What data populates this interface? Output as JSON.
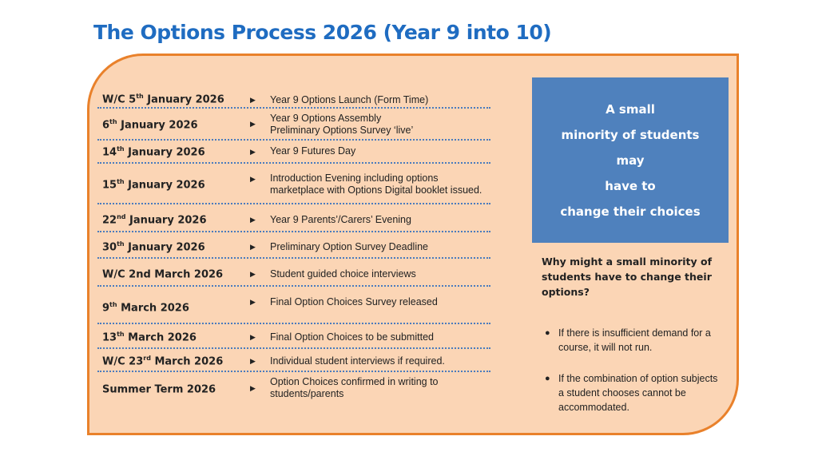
{
  "title": "The Options Process 2026 (Year 9 into 10)",
  "timeline": [
    {
      "date_pre": "W/C 5",
      "sup": "th",
      "date_post": " January 2026",
      "desc1": "Year 9 Options Launch (Form Time)",
      "desc2": ""
    },
    {
      "date_pre": "6",
      "sup": "th",
      "date_post": " January 2026",
      "desc1": "Year 9 Options Assembly",
      "desc2": "Preliminary Options Survey ‘live’"
    },
    {
      "date_pre": "14",
      "sup": "th",
      "date_post": " January 2026",
      "desc1": "Year 9 Futures Day",
      "desc2": ""
    },
    {
      "date_pre": "15",
      "sup": "th",
      "date_post": " January 2026",
      "desc1": "Introduction Evening including options",
      "desc2": "marketplace with Options Digital booklet issued."
    },
    {
      "date_pre": "22",
      "sup": "nd",
      "date_post": " January 2026",
      "desc1": "Year 9 Parents’/Carers’ Evening",
      "desc2": ""
    },
    {
      "date_pre": "30",
      "sup": "th",
      "date_post": " January 2026",
      "desc1": "Preliminary Option Survey Deadline",
      "desc2": ""
    },
    {
      "date_pre": "W/C 2nd March 2026",
      "sup": "",
      "date_post": "",
      "desc1": "Student guided choice interviews",
      "desc2": ""
    },
    {
      "date_pre": "9",
      "sup": "th",
      "date_post": " March 2026",
      "desc1": "Final Option Choices Survey released",
      "desc2": ""
    },
    {
      "date_pre": "13",
      "sup": "th",
      "date_post": " March 2026",
      "desc1": "Final Option Choices to be submitted",
      "desc2": ""
    },
    {
      "date_pre": "W/C 23",
      "sup": "rd",
      "date_post": " March 2026",
      "desc1": "Individual student interviews if required.",
      "desc2": ""
    },
    {
      "date_pre": "Summer Term 2026",
      "sup": "",
      "date_post": "",
      "desc1": "Option Choices confirmed in writing to",
      "desc2": "students/parents"
    }
  ],
  "callout": {
    "line1": "A small",
    "line2": "minority of students",
    "line3": "may",
    "line4": "have to",
    "line5": "change their choices"
  },
  "question": "Why might a small minority of students have to change their options?",
  "reasons": [
    "If there is insufficient demand for a course, it will not run.",
    "If the combination of option subjects a student chooses cannot be accommodated."
  ],
  "colors": {
    "title": "#1f6cc1",
    "panel": "#fbd5b5",
    "border": "#e9812b",
    "callout": "#4f81bd",
    "separator": "#4a7bbd"
  }
}
